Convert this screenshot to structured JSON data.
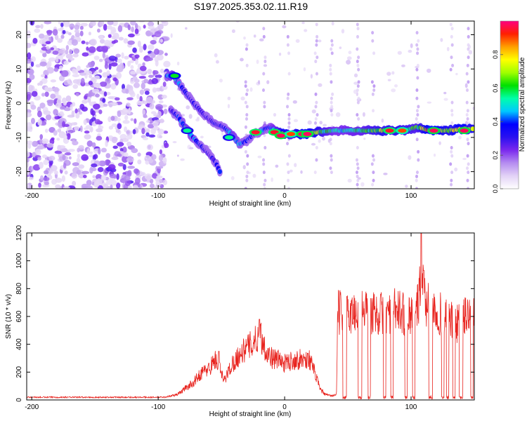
{
  "title": "S197.2025.353.02.11.R19",
  "chart_data": [
    {
      "type": "heatmap",
      "name": "spectrogram",
      "xlabel": "Height of straight line (km)",
      "ylabel": "Frequency (Hz)",
      "xlim": [
        -204,
        150
      ],
      "ylim": [
        -25,
        24
      ],
      "xticks": [
        -200,
        -100,
        0,
        100
      ],
      "yticks": [
        -20,
        -10,
        0,
        10,
        20
      ],
      "xtick_labels": [
        "-200",
        "-100",
        "0",
        "100"
      ],
      "ytick_labels": [
        "-20",
        "-10",
        "0",
        "10",
        "20"
      ],
      "colorbar": {
        "label": "Normalized spectral amplitude",
        "range": [
          0.0,
          1.0
        ],
        "ticks": [
          0.0,
          0.2,
          0.4,
          0.6,
          0.8
        ],
        "tick_labels": [
          "0.0",
          "0.2",
          "0.4",
          "0.6",
          "0.8"
        ],
        "colors": [
          "#ffffff",
          "#e2d2f6",
          "#b58cf0",
          "#7a28ee",
          "#2a10f0",
          "#0000ff",
          "#00c8ff",
          "#00ffaa",
          "#00e000",
          "#a0ff00",
          "#ffff00",
          "#ffa000",
          "#ff2000",
          "#ff0080"
        ]
      },
      "noise_region_x": [
        -204,
        -93
      ],
      "track": [
        {
          "x": -93,
          "f": 8,
          "a": 0.45
        },
        {
          "x": -88,
          "f": 8,
          "a": 0.55
        },
        {
          "x": -80,
          "f": 4,
          "a": 0.35
        },
        {
          "x": -72,
          "f": 0,
          "a": 0.3
        },
        {
          "x": -62,
          "f": -4,
          "a": 0.3
        },
        {
          "x": -55,
          "f": -6,
          "a": 0.3
        },
        {
          "x": -48,
          "f": -7,
          "a": 0.35
        },
        {
          "x": -42,
          "f": -9,
          "a": 0.5
        },
        {
          "x": -36,
          "f": -12,
          "a": 0.45
        },
        {
          "x": -30,
          "f": -11,
          "a": 0.4
        },
        {
          "x": -24,
          "f": -9,
          "a": 0.35
        },
        {
          "x": -18,
          "f": -8,
          "a": 0.45
        },
        {
          "x": -12,
          "f": -7,
          "a": 0.4
        },
        {
          "x": -5,
          "f": -8.5,
          "a": 0.65
        },
        {
          "x": 0,
          "f": -9,
          "a": 0.85
        },
        {
          "x": 5,
          "f": -9,
          "a": 0.6
        },
        {
          "x": 15,
          "f": -9,
          "a": 0.9
        },
        {
          "x": 25,
          "f": -8.5,
          "a": 0.7
        },
        {
          "x": 40,
          "f": -8,
          "a": 0.5
        },
        {
          "x": 60,
          "f": -8,
          "a": 0.55
        },
        {
          "x": 80,
          "f": -8,
          "a": 0.7
        },
        {
          "x": 95,
          "f": -8,
          "a": 0.65
        },
        {
          "x": 105,
          "f": -7,
          "a": 0.6
        },
        {
          "x": 115,
          "f": -8,
          "a": 0.9
        },
        {
          "x": 130,
          "f": -8,
          "a": 0.7
        },
        {
          "x": 140,
          "f": -7.5,
          "a": 0.85
        },
        {
          "x": 150,
          "f": -7.5,
          "a": 0.7
        }
      ],
      "branch": [
        {
          "x": -90,
          "f": -2,
          "a": 0.3
        },
        {
          "x": -84,
          "f": -4,
          "a": 0.4
        },
        {
          "x": -77,
          "f": -8,
          "a": 0.5
        },
        {
          "x": -70,
          "f": -11,
          "a": 0.4
        },
        {
          "x": -62,
          "f": -14,
          "a": 0.3
        },
        {
          "x": -55,
          "f": -17,
          "a": 0.3
        },
        {
          "x": -50,
          "f": -21,
          "a": 0.4
        }
      ],
      "hot_spots": [
        {
          "x": -87,
          "f": 8,
          "a": 0.6
        },
        {
          "x": -77,
          "f": -8,
          "a": 0.55
        },
        {
          "x": -44,
          "f": -10,
          "a": 0.55
        },
        {
          "x": -23,
          "f": -8.5,
          "a": 0.95
        },
        {
          "x": -8,
          "f": -8.5,
          "a": 0.95
        },
        {
          "x": -3,
          "f": -9.5,
          "a": 0.98
        },
        {
          "x": 5,
          "f": -9,
          "a": 0.9
        },
        {
          "x": 14,
          "f": -9,
          "a": 0.98
        },
        {
          "x": 18,
          "f": -9,
          "a": 0.98
        },
        {
          "x": 83,
          "f": -8,
          "a": 0.95
        },
        {
          "x": 93,
          "f": -8,
          "a": 0.9
        },
        {
          "x": 118,
          "f": -8,
          "a": 0.98
        },
        {
          "x": 142,
          "f": -8,
          "a": 0.98
        }
      ],
      "vertical_streaks_x": [
        -30,
        -16,
        3,
        25,
        37,
        58,
        70,
        105,
        132,
        145
      ]
    },
    {
      "type": "line",
      "name": "snr",
      "xlabel": "Height of straight line (km)",
      "ylabel": "SNR (10 * v/v)",
      "xlim": [
        -204,
        150
      ],
      "ylim": [
        0,
        1200
      ],
      "xticks": [
        -200,
        -100,
        0,
        100
      ],
      "yticks": [
        0,
        200,
        400,
        600,
        800,
        1000,
        1200
      ],
      "xtick_labels": [
        "-200",
        "-100",
        "0",
        "100"
      ],
      "ytick_labels": [
        "0",
        "200",
        "400",
        "600",
        "800",
        "1000",
        "1200"
      ],
      "color": "#e8231e",
      "envelope_x": [
        -204,
        -95,
        -85,
        -78,
        -72,
        -66,
        -60,
        -55,
        -52,
        -48,
        -42,
        -37,
        -33,
        -28,
        -22,
        -19,
        -15,
        -10,
        -5,
        0,
        5,
        10,
        15,
        20,
        25,
        28,
        32,
        37,
        41,
        42,
        47,
        52,
        57,
        62,
        67,
        72,
        77,
        82,
        87,
        92,
        97,
        102,
        105,
        108,
        112,
        117,
        122,
        127,
        132,
        137,
        141,
        145,
        150
      ],
      "envelope_y": [
        20,
        20,
        40,
        90,
        130,
        200,
        230,
        300,
        250,
        140,
        260,
        320,
        360,
        400,
        450,
        480,
        370,
        310,
        300,
        270,
        290,
        300,
        300,
        300,
        170,
        80,
        40,
        30,
        40,
        650,
        640,
        640,
        650,
        660,
        650,
        640,
        640,
        650,
        660,
        650,
        630,
        660,
        680,
        900,
        700,
        680,
        650,
        600,
        580,
        560,
        600,
        640,
        640
      ],
      "peaks": [
        {
          "x": -52,
          "y": 350
        },
        {
          "x": -20,
          "y": 580
        },
        {
          "x": 108,
          "y": 1200
        },
        {
          "x": 110,
          "y": 930
        }
      ],
      "dropouts": [
        {
          "from": 46,
          "to": 49
        },
        {
          "from": 58,
          "to": 61
        },
        {
          "from": 66,
          "to": 68
        },
        {
          "from": 78,
          "to": 80
        },
        {
          "from": 84,
          "to": 86
        },
        {
          "from": 95,
          "to": 97
        },
        {
          "from": 101,
          "to": 103
        },
        {
          "from": 114,
          "to": 117
        },
        {
          "from": 124,
          "to": 126
        },
        {
          "from": 128,
          "to": 130
        },
        {
          "from": 133,
          "to": 135
        },
        {
          "from": 138,
          "to": 141
        },
        {
          "from": 147,
          "to": 149
        }
      ]
    }
  ]
}
